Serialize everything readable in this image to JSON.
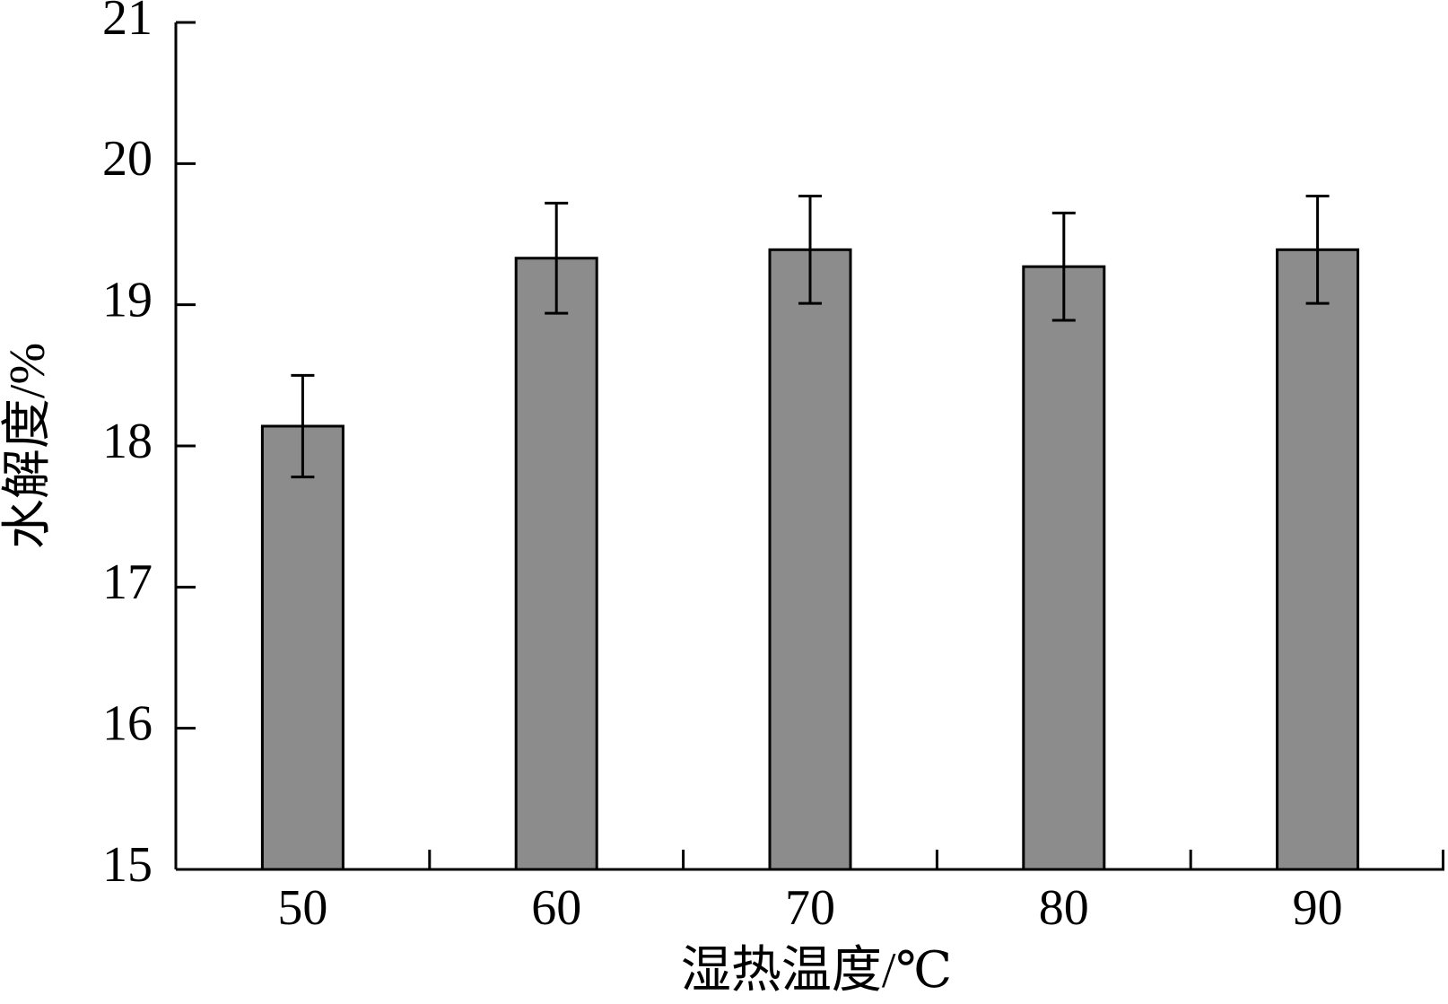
{
  "chart_data": {
    "type": "bar",
    "x_label": "湿热温度/℃",
    "y_label": "水解度/%",
    "categories": [
      "50",
      "60",
      "70",
      "80",
      "90"
    ],
    "values": [
      18.14,
      19.33,
      19.39,
      19.27,
      19.39
    ],
    "errors": [
      0.36,
      0.39,
      0.38,
      0.38,
      0.38
    ],
    "color": "#8c8c8c",
    "ylim": [
      15,
      21
    ],
    "yticks": [
      15,
      16,
      17,
      18,
      19,
      20,
      21
    ]
  }
}
